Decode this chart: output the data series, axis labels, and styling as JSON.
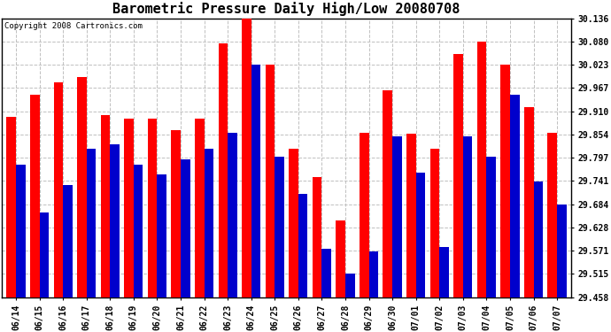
{
  "title": "Barometric Pressure Daily High/Low 20080708",
  "copyright": "Copyright 2008 Cartronics.com",
  "ylim": [
    29.458,
    30.136
  ],
  "yticks": [
    29.458,
    29.515,
    29.571,
    29.628,
    29.684,
    29.741,
    29.797,
    29.854,
    29.91,
    29.967,
    30.023,
    30.08,
    30.136
  ],
  "dates": [
    "06/14",
    "06/15",
    "06/16",
    "06/17",
    "06/18",
    "06/19",
    "06/20",
    "06/21",
    "06/22",
    "06/23",
    "06/24",
    "06/25",
    "06/26",
    "06/27",
    "06/28",
    "06/29",
    "06/30",
    "07/01",
    "07/02",
    "07/03",
    "07/04",
    "07/05",
    "07/06",
    "07/07"
  ],
  "high": [
    29.897,
    29.95,
    29.98,
    29.993,
    29.9,
    29.893,
    29.893,
    29.865,
    29.893,
    30.075,
    30.136,
    30.023,
    29.82,
    29.75,
    29.645,
    29.857,
    29.96,
    29.855,
    29.82,
    30.05,
    30.08,
    30.023,
    29.92,
    29.857
  ],
  "low": [
    29.78,
    29.665,
    29.73,
    29.82,
    29.83,
    29.78,
    29.757,
    29.793,
    29.82,
    29.857,
    30.023,
    29.8,
    29.71,
    29.575,
    29.515,
    29.57,
    29.85,
    29.76,
    29.58,
    29.85,
    29.8,
    29.95,
    29.74,
    29.684
  ],
  "high_color": "#ff0000",
  "low_color": "#0000cc",
  "bg_color": "#ffffff",
  "grid_color": "#c0c0c0",
  "bar_width": 0.4,
  "title_fontsize": 11,
  "tick_fontsize": 7,
  "copyright_fontsize": 6.5
}
